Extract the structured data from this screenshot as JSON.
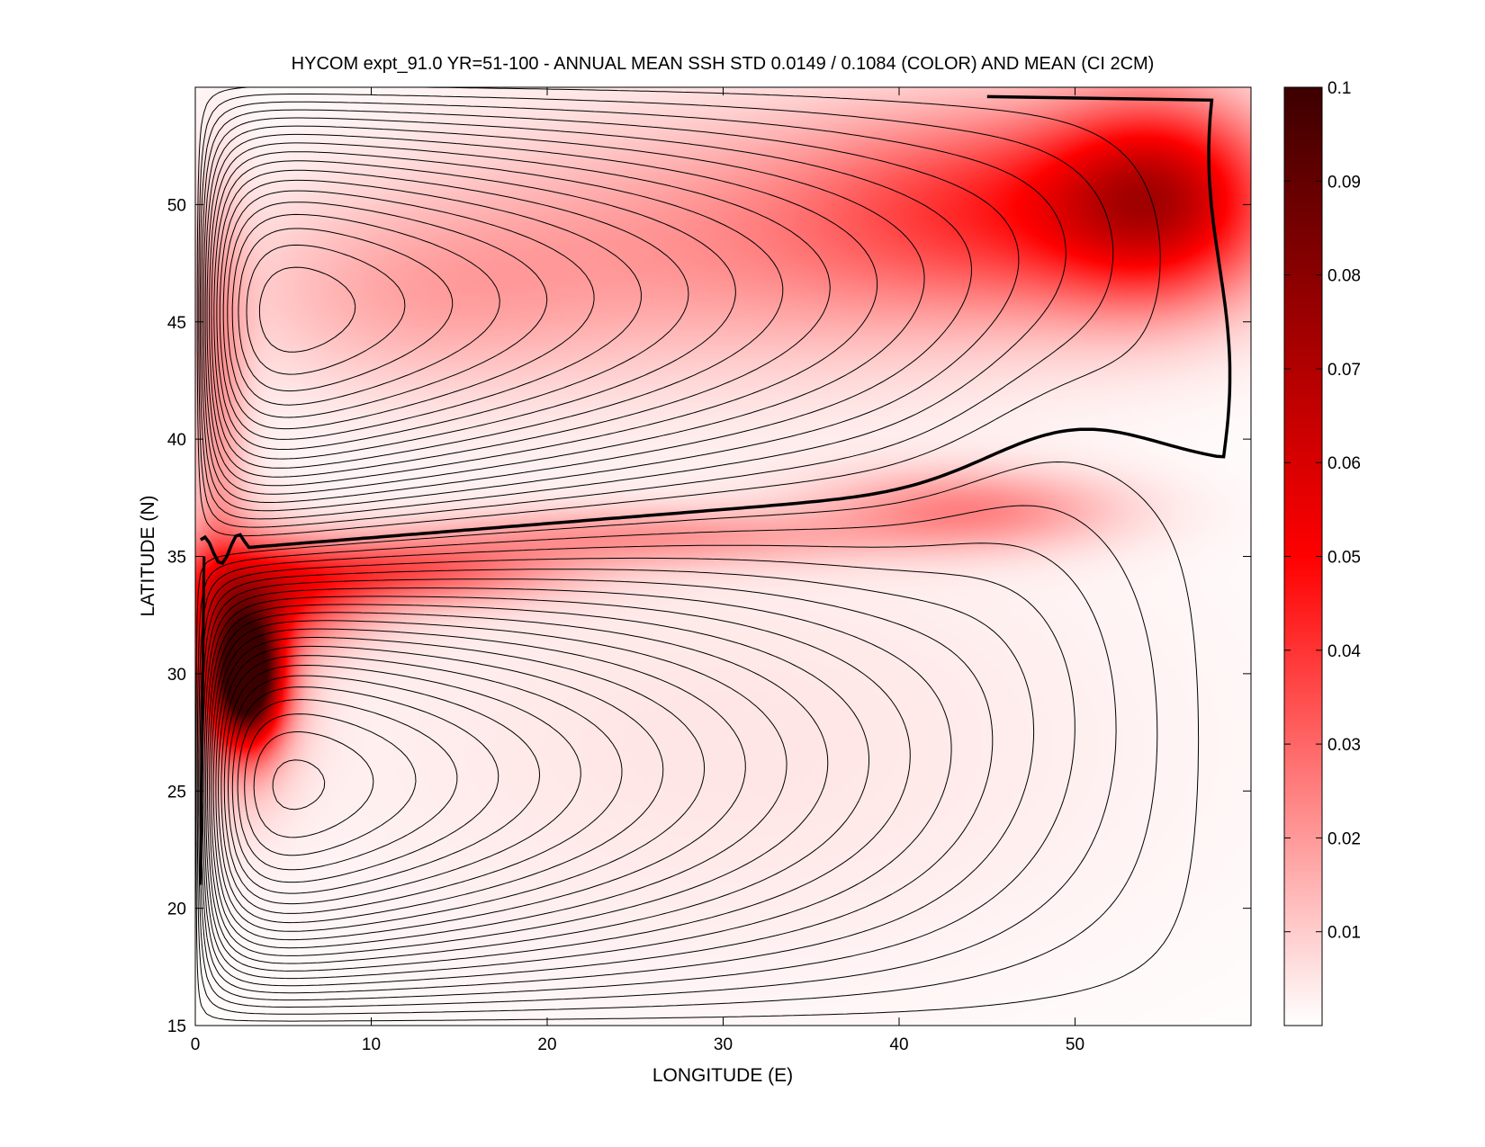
{
  "chart_data": {
    "type": "heatmap",
    "title": "HYCOM expt_91.0 YR=51-100 - ANNUAL MEAN SSH STD 0.0149 / 0.1084 (COLOR) AND MEAN (CI 2CM)",
    "xlabel": "LONGITUDE (E)",
    "ylabel": "LATITUDE (N)",
    "xlim": [
      0,
      60
    ],
    "ylim": [
      15,
      55
    ],
    "x_ticks": [
      0,
      10,
      20,
      30,
      40,
      50
    ],
    "y_ticks": [
      15,
      20,
      25,
      30,
      35,
      40,
      45,
      50
    ],
    "colorbar": {
      "min": 0,
      "max": 0.1,
      "ticks": [
        0.01,
        0.02,
        0.03,
        0.04,
        0.05,
        0.06,
        0.07,
        0.08,
        0.09,
        0.1
      ],
      "tick_labels": [
        "0.01",
        "0.02",
        "0.03",
        "0.04",
        "0.05",
        "0.06",
        "0.07",
        "0.08",
        "0.09",
        "0.1"
      ],
      "colors": [
        "#ffffff",
        "#ff0000",
        "#3c0000"
      ],
      "position": "right"
    },
    "color_field_blobs": [
      {
        "lon": 3.0,
        "lat": 29.8,
        "sx": 1.3,
        "sy": 1.8,
        "amp": 0.095
      },
      {
        "lon": 2.0,
        "lat": 30.5,
        "sx": 2.5,
        "sy": 3.5,
        "amp": 0.04
      },
      {
        "lon": 4.5,
        "lat": 33.3,
        "sx": 4.0,
        "sy": 1.5,
        "amp": 0.035
      },
      {
        "lon": 12.0,
        "lat": 34.3,
        "sx": 6.0,
        "sy": 1.0,
        "amp": 0.028
      },
      {
        "lon": 25.0,
        "lat": 35.8,
        "sx": 9.0,
        "sy": 0.9,
        "amp": 0.018
      },
      {
        "lon": 44.0,
        "lat": 37.0,
        "sx": 6.0,
        "sy": 1.2,
        "amp": 0.022
      },
      {
        "lon": 55.0,
        "lat": 50.3,
        "sx": 4.5,
        "sy": 3.0,
        "amp": 0.05
      },
      {
        "lon": 47.0,
        "lat": 50.0,
        "sx": 8.0,
        "sy": 3.0,
        "amp": 0.03
      },
      {
        "lon": 32.0,
        "lat": 48.5,
        "sx": 14.0,
        "sy": 4.0,
        "amp": 0.02
      },
      {
        "lon": 12.0,
        "lat": 46.0,
        "sx": 8.0,
        "sy": 3.0,
        "amp": 0.012
      },
      {
        "lon": 1.2,
        "lat": 42.0,
        "sx": 1.2,
        "sy": 6.0,
        "amp": 0.018
      },
      {
        "lon": 30.0,
        "lat": 27.0,
        "sx": 20.0,
        "sy": 8.0,
        "amp": 0.005
      }
    ],
    "contour_interval_m": 0.02,
    "highlighted_contour": "zero mean SSH line (thick black)"
  }
}
